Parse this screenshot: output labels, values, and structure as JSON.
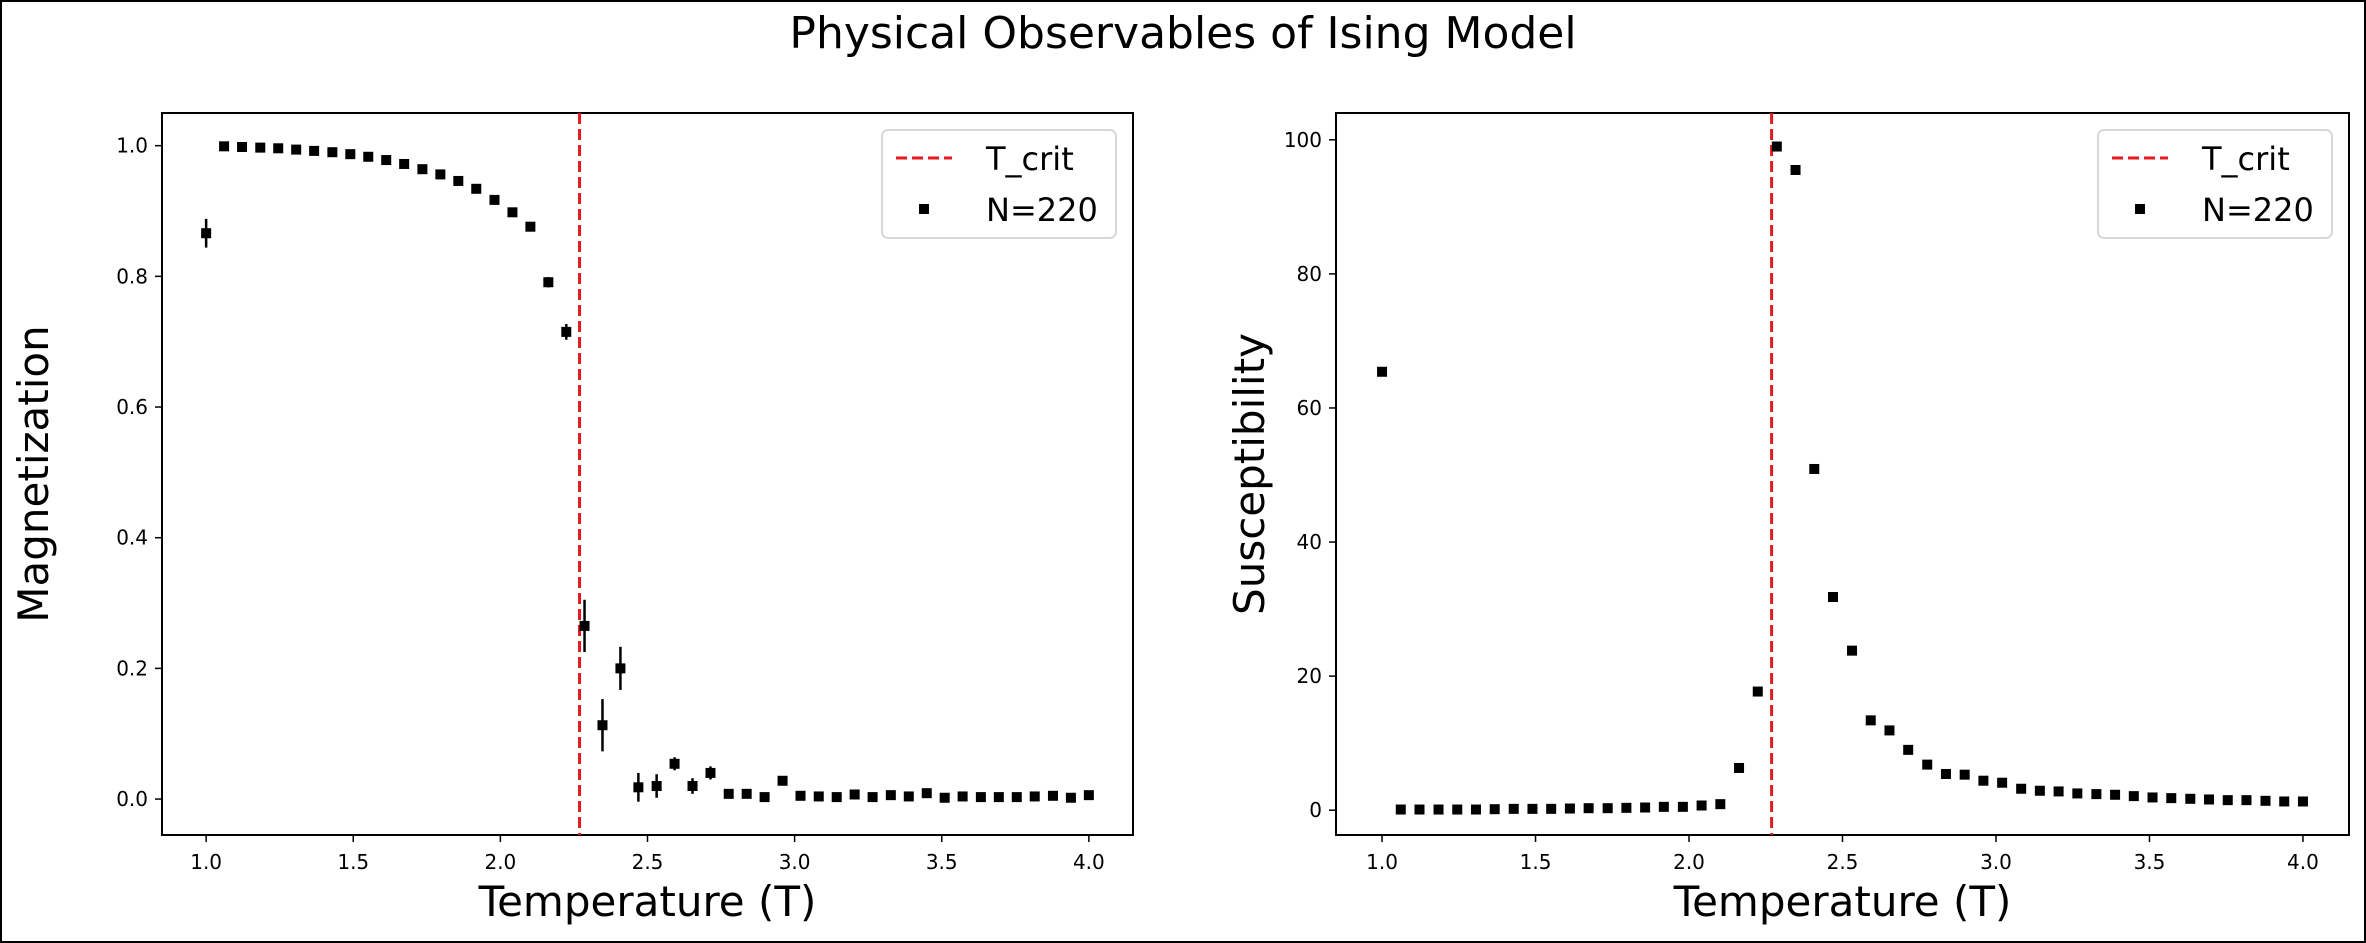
{
  "figure": {
    "title": "Physical Observables of Ising Model"
  },
  "chart_data": [
    {
      "type": "scatter",
      "xlabel": "Temperature (T)",
      "ylabel": "Magnetization",
      "xlim": [
        0.85,
        4.15
      ],
      "ylim": [
        -0.055,
        1.05
      ],
      "xticks": [
        "1.0",
        "1.5",
        "2.0",
        "2.5",
        "3.0",
        "3.5",
        "4.0"
      ],
      "yticks": [
        "0.0",
        "0.2",
        "0.4",
        "0.6",
        "0.8",
        "1.0"
      ],
      "vline": {
        "x": 2.269,
        "label": "T_crit",
        "color": "#e41a1c",
        "style": "dashed"
      },
      "legend": {
        "position": "upper right",
        "entries": [
          "T_crit",
          "N=220"
        ]
      },
      "series": [
        {
          "name": "N=220",
          "marker": "square",
          "color": "#000000",
          "x": [
            1.0,
            1.061,
            1.122,
            1.184,
            1.245,
            1.306,
            1.367,
            1.429,
            1.49,
            1.551,
            1.612,
            1.673,
            1.735,
            1.796,
            1.857,
            1.918,
            1.98,
            2.041,
            2.102,
            2.163,
            2.224,
            2.286,
            2.347,
            2.408,
            2.469,
            2.531,
            2.592,
            2.653,
            2.714,
            2.776,
            2.837,
            2.898,
            2.959,
            3.02,
            3.082,
            3.143,
            3.204,
            3.265,
            3.327,
            3.388,
            3.449,
            3.51,
            3.571,
            3.633,
            3.694,
            3.755,
            3.816,
            3.878,
            3.939,
            4.0
          ],
          "y": [
            0.866,
            0.999,
            0.998,
            0.997,
            0.996,
            0.994,
            0.992,
            0.99,
            0.987,
            0.983,
            0.978,
            0.972,
            0.964,
            0.956,
            0.946,
            0.934,
            0.917,
            0.898,
            0.876,
            0.791,
            0.715,
            0.265,
            0.113,
            0.2,
            0.018,
            0.02,
            0.054,
            0.02,
            0.04,
            0.008,
            0.008,
            0.003,
            0.028,
            0.005,
            0.004,
            0.003,
            0.007,
            0.003,
            0.006,
            0.004,
            0.009,
            0.002,
            0.004,
            0.003,
            0.003,
            0.003,
            0.004,
            0.005,
            0.002,
            0.006
          ],
          "yerr": [
            0.022,
            0,
            0,
            0,
            0,
            0,
            0,
            0,
            0,
            0,
            0,
            0,
            0,
            0,
            0,
            0,
            0,
            0,
            0,
            0.008,
            0.012,
            0.04,
            0.04,
            0.033,
            0.022,
            0.018,
            0.01,
            0.012,
            0.01,
            0.007,
            0.005,
            0.004,
            0.004,
            0.004,
            0.003,
            0.003,
            0.003,
            0.003,
            0.003,
            0.003,
            0.003,
            0.002,
            0.002,
            0.002,
            0.002,
            0.002,
            0.002,
            0.002,
            0.002,
            0.002
          ]
        }
      ]
    },
    {
      "type": "scatter",
      "xlabel": "Temperature (T)",
      "ylabel": "Susceptibility",
      "xlim": [
        0.85,
        4.15
      ],
      "ylim": [
        -3.7,
        104
      ],
      "xticks": [
        "1.0",
        "1.5",
        "2.0",
        "2.5",
        "3.0",
        "3.5",
        "4.0"
      ],
      "yticks": [
        "0",
        "20",
        "40",
        "60",
        "80",
        "100"
      ],
      "vline": {
        "x": 2.269,
        "label": "T_crit",
        "color": "#e41a1c",
        "style": "dashed"
      },
      "legend": {
        "position": "upper right",
        "entries": [
          "T_crit",
          "N=220"
        ]
      },
      "series": [
        {
          "name": "N=220",
          "marker": "square",
          "color": "#000000",
          "x": [
            1.0,
            1.061,
            1.122,
            1.184,
            1.245,
            1.306,
            1.367,
            1.429,
            1.49,
            1.551,
            1.612,
            1.673,
            1.735,
            1.796,
            1.857,
            1.918,
            1.98,
            2.041,
            2.102,
            2.163,
            2.224,
            2.286,
            2.347,
            2.408,
            2.469,
            2.531,
            2.592,
            2.653,
            2.714,
            2.776,
            2.837,
            2.898,
            2.959,
            3.02,
            3.082,
            3.143,
            3.204,
            3.265,
            3.327,
            3.388,
            3.449,
            3.51,
            3.571,
            3.633,
            3.694,
            3.755,
            3.816,
            3.878,
            3.939,
            4.0
          ],
          "y": [
            65.4,
            0.1,
            0.1,
            0.1,
            0.1,
            0.1,
            0.15,
            0.2,
            0.2,
            0.2,
            0.25,
            0.3,
            0.3,
            0.35,
            0.4,
            0.5,
            0.5,
            0.7,
            0.9,
            6.3,
            17.7,
            99.0,
            95.5,
            50.9,
            31.8,
            23.8,
            13.4,
            11.9,
            9.0,
            6.8,
            5.4,
            5.3,
            4.4,
            4.1,
            3.2,
            2.9,
            2.8,
            2.5,
            2.4,
            2.3,
            2.1,
            1.9,
            1.8,
            1.7,
            1.6,
            1.5,
            1.5,
            1.4,
            1.3,
            1.3
          ]
        }
      ]
    }
  ]
}
